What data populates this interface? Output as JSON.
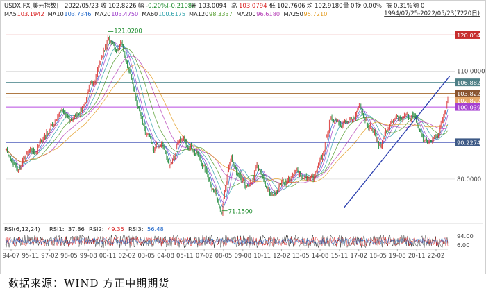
{
  "chart_data": {
    "type": "line",
    "header": {
      "symbol": "USDX.FX[美元指数]",
      "date": "2022/05/23",
      "close_label": "收",
      "close": "102.8226",
      "change_label": "幅",
      "change": "-0.20%(-0.2108)",
      "open_label": "开",
      "open": "103.0094",
      "high_label": "高",
      "high": "103.0794",
      "low_label": "低",
      "low": "102.7606",
      "avg_label": "均",
      "avg": "102.9180",
      "volume_label": "量",
      "volume": "0",
      "turnover_label": "换",
      "turnover": "0.00%",
      "amplitude_label": "振",
      "amplitude": "0.31%",
      "amount_label": "额",
      "amount": "0",
      "range": "1994/07/25-2022/05/23(7220日)"
    },
    "ma_legend": [
      {
        "name": "MA5",
        "value": "103.1942",
        "color": "#d81e1e"
      },
      {
        "name": "MA10",
        "value": "103.7346",
        "color": "#1f66c9"
      },
      {
        "name": "MA20",
        "value": "103.4750",
        "color": "#9b38c9"
      },
      {
        "name": "MA60",
        "value": "100.6175",
        "color": "#2a9fa8"
      },
      {
        "name": "MA120",
        "value": "98.3337",
        "color": "#4f9a28"
      },
      {
        "name": "MA200",
        "value": "96.6180",
        "color": "#b63fb6"
      },
      {
        "name": "MA250",
        "value": "95.7210",
        "color": "#e39a1d"
      }
    ],
    "y_ticks": [
      "110.0000",
      "80.0000"
    ],
    "ylim": [
      68,
      124
    ],
    "x_ticks": [
      "94-07",
      "95-11",
      "97-02",
      "98-05",
      "99-08",
      "00-11",
      "02-02",
      "03-05",
      "04-08",
      "05-11",
      "07-02",
      "08-05",
      "09-08",
      "10-11",
      "12-02",
      "13-05",
      "14-08",
      "15-11",
      "17-02",
      "18-05",
      "19-08",
      "20-11",
      "22-02"
    ],
    "horizontal_levels": [
      {
        "value": 120.054,
        "label": "120.054",
        "line": "#d64545",
        "box": "#c62d2d"
      },
      {
        "value": 106.882,
        "label": "106.882",
        "line": "#5a8f94",
        "box": "#4e7f86"
      },
      {
        "value": 103.822,
        "label": "103.822",
        "line": "#b07a44",
        "box": "#8a5530"
      },
      {
        "value": 102.822,
        "label": "102.8226",
        "line": "#e6a86a",
        "box": "#e6a86a"
      },
      {
        "value": 100.039,
        "label": "100.039",
        "line": "#b64ae0",
        "box": "#a641d0"
      },
      {
        "value": 90.2274,
        "label": "90.2274",
        "line": "#2b3fae",
        "box": "#3e5a86"
      }
    ],
    "annotations": [
      {
        "label": "121.0200",
        "x": 2001.0,
        "y": 121.02
      },
      {
        "label": "71.1500",
        "x": 2008.2,
        "y": 71.15
      }
    ],
    "trendline": {
      "x": [
        2015.9,
        2021.6
      ],
      "y": [
        72.0,
        102.8
      ]
    },
    "close_series": {
      "x": [
        1994.55,
        1995.0,
        1995.3,
        1995.8,
        1996.5,
        1997.0,
        1997.5,
        1998.0,
        1998.6,
        1998.9,
        1999.4,
        1999.8,
        2000.3,
        2000.7,
        2001.0,
        2001.5,
        2001.9,
        2002.4,
        2002.9,
        2003.3,
        2003.9,
        2004.4,
        2004.9,
        2005.4,
        2005.9,
        2006.5,
        2007.0,
        2007.6,
        2008.2,
        2008.5,
        2008.8,
        2009.2,
        2009.9,
        2010.4,
        2010.9,
        2011.3,
        2011.9,
        2012.5,
        2013.0,
        2013.6,
        2014.0,
        2014.5,
        2015.0,
        2015.4,
        2015.9,
        2016.4,
        2016.9,
        2017.3,
        2017.8,
        2018.1,
        2018.8,
        2019.3,
        2019.8,
        2020.2,
        2020.5,
        2020.9,
        2021.4,
        2021.8,
        2022.1,
        2022.4
      ],
      "y": [
        89,
        84,
        82,
        86,
        88,
        92,
        95,
        99,
        96,
        97,
        100,
        104,
        110,
        115,
        119,
        116,
        118,
        108,
        100,
        94,
        88,
        90,
        84,
        89,
        91,
        88,
        84,
        78,
        72,
        79,
        86,
        80,
        77,
        83,
        79,
        75,
        79,
        80,
        82,
        80,
        80,
        85,
        96,
        97,
        96,
        95,
        101,
        97,
        93,
        89,
        95,
        96,
        97,
        98,
        95,
        91,
        90,
        93,
        96,
        102.8
      ]
    },
    "rsi_legend": [
      {
        "name": "RSI(6,12,24)",
        "value": "",
        "color": "#222222"
      },
      {
        "name": "RSI1:",
        "value": "37.86",
        "color": "#222222"
      },
      {
        "name": "RSI2:",
        "value": "49.35",
        "color": "#d81e1e"
      },
      {
        "name": "RSI3:",
        "value": "56.48",
        "color": "#1f66c9"
      }
    ],
    "rsi_ticks": [
      "94.00",
      "6.00"
    ]
  },
  "source": "数据来源：WIND 方正中期期货"
}
